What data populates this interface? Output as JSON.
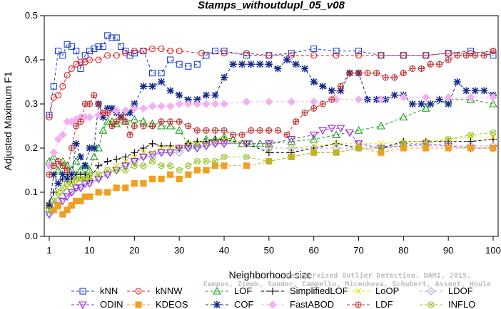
{
  "chart_data": {
    "type": "line",
    "title": "Stamps_withoutdupl_05_v08",
    "xlabel": "Neighborhood size",
    "ylabel": "Adjusted Maximum F1",
    "xlim": [
      1,
      100
    ],
    "ylim": [
      0.0,
      0.5
    ],
    "xticks": [
      1,
      10,
      20,
      30,
      40,
      50,
      60,
      70,
      80,
      90,
      100
    ],
    "yticks": [
      0.0,
      0.1,
      0.2,
      0.3,
      0.4,
      0.5
    ],
    "ytick_labels": [
      "0.0",
      "0.1",
      "0.2",
      "0.3",
      "0.4",
      "0.5"
    ],
    "grid": false,
    "legend_position": "bottom",
    "watermark_lines": [
      "Campos, Zimek, Sander, Campello, Micenkova, Schubert, Assent, Houle",
      "Unsupervised Outlier Detection. DAMI, 2015."
    ],
    "series": [
      {
        "name": "kNN",
        "color": "#1f3fd1",
        "marker": "square",
        "dash": "4,3",
        "x": [
          1,
          2,
          3,
          4,
          5,
          6,
          7,
          8,
          9,
          10,
          11,
          12,
          13,
          14,
          15,
          16,
          17,
          18,
          19,
          20,
          22,
          24,
          26,
          28,
          30,
          32,
          34,
          36,
          38,
          40,
          45,
          50,
          55,
          60,
          65,
          70,
          75,
          80,
          85,
          90,
          95,
          100
        ],
        "y": [
          0.275,
          0.34,
          0.42,
          0.41,
          0.435,
          0.43,
          0.42,
          0.38,
          0.41,
          0.42,
          0.425,
          0.43,
          0.43,
          0.455,
          0.45,
          0.45,
          0.43,
          0.42,
          0.41,
          0.415,
          0.42,
          0.37,
          0.37,
          0.4,
          0.39,
          0.385,
          0.39,
          0.41,
          0.42,
          0.42,
          0.41,
          0.41,
          0.415,
          0.425,
          0.42,
          0.42,
          0.41,
          0.41,
          0.41,
          0.415,
          0.42,
          0.41
        ]
      },
      {
        "name": "kNNW",
        "color": "#e02020",
        "marker": "circle",
        "dash": "4,3",
        "x": [
          1,
          2,
          3,
          4,
          5,
          6,
          7,
          8,
          9,
          10,
          12,
          14,
          16,
          18,
          20,
          22,
          24,
          26,
          28,
          30,
          35,
          40,
          45,
          50,
          55,
          60,
          65,
          70,
          75,
          80,
          85,
          90,
          95,
          100
        ],
        "y": [
          0.27,
          0.315,
          0.32,
          0.34,
          0.365,
          0.38,
          0.39,
          0.395,
          0.395,
          0.4,
          0.4,
          0.41,
          0.41,
          0.415,
          0.42,
          0.42,
          0.425,
          0.425,
          0.42,
          0.42,
          0.415,
          0.415,
          0.415,
          0.41,
          0.41,
          0.41,
          0.41,
          0.41,
          0.41,
          0.41,
          0.41,
          0.415,
          0.415,
          0.42
        ]
      },
      {
        "name": "LOF",
        "color": "#1aa01a",
        "marker": "triangle-up",
        "dash": "4,3",
        "x": [
          1,
          2,
          3,
          4,
          5,
          6,
          7,
          8,
          9,
          10,
          11,
          12,
          13,
          14,
          15,
          16,
          18,
          20,
          22,
          24,
          26,
          28,
          30,
          32,
          34,
          36,
          38,
          40,
          42,
          44,
          46,
          48,
          50,
          55,
          60,
          65,
          70,
          75,
          80,
          85,
          90,
          95,
          100
        ],
        "y": [
          0.17,
          0.18,
          0.15,
          0.17,
          0.16,
          0.15,
          0.17,
          0.15,
          0.16,
          0.15,
          0.18,
          0.2,
          0.24,
          0.26,
          0.26,
          0.255,
          0.26,
          0.265,
          0.26,
          0.255,
          0.25,
          0.25,
          0.24,
          0.21,
          0.21,
          0.22,
          0.22,
          0.225,
          0.22,
          0.21,
          0.21,
          0.21,
          0.21,
          0.215,
          0.22,
          0.23,
          0.24,
          0.25,
          0.27,
          0.29,
          0.31,
          0.31,
          0.3
        ]
      },
      {
        "name": "SimplifiedLOF",
        "color": "#000000",
        "marker": "plus",
        "dash": "4,3",
        "x": [
          1,
          2,
          3,
          4,
          5,
          6,
          7,
          8,
          9,
          10,
          12,
          14,
          16,
          18,
          20,
          22,
          24,
          26,
          28,
          30,
          32,
          34,
          36,
          38,
          40,
          45,
          50,
          55,
          60,
          65,
          70,
          75,
          80,
          85,
          90,
          95,
          100
        ],
        "y": [
          0.075,
          0.1,
          0.12,
          0.13,
          0.14,
          0.13,
          0.14,
          0.14,
          0.14,
          0.13,
          0.16,
          0.17,
          0.175,
          0.18,
          0.19,
          0.2,
          0.21,
          0.205,
          0.205,
          0.2,
          0.21,
          0.215,
          0.215,
          0.22,
          0.22,
          0.21,
          0.19,
          0.19,
          0.2,
          0.21,
          0.2,
          0.2,
          0.215,
          0.215,
          0.215,
          0.215,
          0.22
        ]
      },
      {
        "name": "LoOP",
        "color": "#e8e000",
        "marker": "x",
        "dash": "4,3",
        "x": [
          1,
          2,
          3,
          4,
          5,
          6,
          7,
          8,
          9,
          10,
          12,
          14,
          16,
          18,
          20,
          22,
          24,
          26,
          28,
          30,
          32,
          34,
          36,
          38,
          40,
          45,
          50,
          55,
          60,
          65,
          70,
          75,
          80,
          85,
          90,
          95,
          100
        ],
        "y": [
          0.06,
          0.08,
          0.09,
          0.1,
          0.11,
          0.12,
          0.12,
          0.13,
          0.13,
          0.13,
          0.14,
          0.15,
          0.16,
          0.17,
          0.18,
          0.19,
          0.19,
          0.2,
          0.2,
          0.2,
          0.21,
          0.21,
          0.21,
          0.215,
          0.22,
          0.21,
          0.2,
          0.2,
          0.205,
          0.21,
          0.21,
          0.21,
          0.215,
          0.215,
          0.22,
          0.225,
          0.225
        ]
      },
      {
        "name": "LDOF",
        "color": "#a8a8e8",
        "marker": "diamond",
        "dash": "4,3",
        "x": [
          1,
          2,
          3,
          4,
          5,
          6,
          7,
          8,
          9,
          10,
          12,
          14,
          16,
          18,
          20,
          22,
          24,
          26,
          28,
          30,
          32,
          34,
          36,
          38,
          40,
          45,
          50,
          55,
          60,
          65,
          70,
          75,
          80,
          85,
          90,
          95,
          100
        ],
        "y": [
          0.05,
          0.07,
          0.08,
          0.09,
          0.1,
          0.1,
          0.11,
          0.11,
          0.12,
          0.12,
          0.13,
          0.14,
          0.15,
          0.16,
          0.17,
          0.18,
          0.18,
          0.19,
          0.19,
          0.19,
          0.2,
          0.2,
          0.205,
          0.21,
          0.21,
          0.21,
          0.2,
          0.2,
          0.2,
          0.2,
          0.2,
          0.2,
          0.205,
          0.205,
          0.205,
          0.205,
          0.205
        ]
      },
      {
        "name": "ODIN",
        "color": "#9a2ad0",
        "marker": "triangle-down",
        "dash": "4,3",
        "x": [
          1,
          2,
          3,
          4,
          5,
          6,
          7,
          8,
          9,
          10,
          12,
          14,
          16,
          18,
          20,
          22,
          24,
          26,
          28,
          30,
          32,
          34,
          36,
          38,
          40,
          45,
          50,
          55,
          60,
          62,
          64,
          66,
          68,
          70,
          75,
          80,
          85,
          90,
          95,
          100
        ],
        "y": [
          0.05,
          0.06,
          0.07,
          0.08,
          0.09,
          0.1,
          0.11,
          0.11,
          0.12,
          0.12,
          0.13,
          0.14,
          0.15,
          0.16,
          0.17,
          0.18,
          0.185,
          0.19,
          0.19,
          0.2,
          0.2,
          0.2,
          0.205,
          0.21,
          0.21,
          0.21,
          0.21,
          0.22,
          0.23,
          0.24,
          0.245,
          0.245,
          0.235,
          0.21,
          0.2,
          0.205,
          0.21,
          0.205,
          0.2,
          0.2
        ]
      },
      {
        "name": "KDEOS",
        "color": "#f0a020",
        "marker": "square-filled",
        "dash": "4,3",
        "x": [
          1,
          2,
          3,
          4,
          5,
          6,
          7,
          8,
          9,
          10,
          12,
          14,
          16,
          18,
          20,
          22,
          24,
          26,
          28,
          30,
          32,
          34,
          36,
          38,
          40,
          45,
          50,
          55,
          60,
          65,
          70,
          75,
          80,
          85,
          90,
          95,
          100
        ],
        "y": [
          0.07,
          0.06,
          0.07,
          0.05,
          0.06,
          0.07,
          0.08,
          0.08,
          0.09,
          0.09,
          0.1,
          0.1,
          0.11,
          0.11,
          0.12,
          0.12,
          0.13,
          0.13,
          0.14,
          0.13,
          0.14,
          0.15,
          0.15,
          0.16,
          0.16,
          0.16,
          0.17,
          0.18,
          0.19,
          0.19,
          0.2,
          0.19,
          0.2,
          0.2,
          0.2,
          0.2,
          0.2
        ]
      },
      {
        "name": "COF",
        "color": "#142a8a",
        "marker": "star",
        "dash": "4,3",
        "x": [
          1,
          2,
          3,
          4,
          5,
          6,
          7,
          8,
          9,
          10,
          11,
          12,
          13,
          14,
          15,
          16,
          17,
          18,
          19,
          20,
          22,
          24,
          26,
          28,
          30,
          32,
          34,
          36,
          38,
          40,
          42,
          44,
          46,
          48,
          50,
          52,
          54,
          56,
          58,
          60,
          62,
          64,
          66,
          68,
          70,
          72,
          74,
          76,
          78,
          80,
          82,
          84,
          86,
          88,
          90,
          92,
          94,
          96,
          98,
          100
        ],
        "y": [
          0.07,
          0.14,
          0.12,
          0.14,
          0.13,
          0.14,
          0.21,
          0.18,
          0.16,
          0.2,
          0.2,
          0.3,
          0.27,
          0.29,
          0.29,
          0.28,
          0.27,
          0.28,
          0.28,
          0.3,
          0.34,
          0.34,
          0.35,
          0.33,
          0.32,
          0.31,
          0.31,
          0.32,
          0.32,
          0.36,
          0.39,
          0.39,
          0.39,
          0.39,
          0.39,
          0.38,
          0.4,
          0.39,
          0.38,
          0.35,
          0.34,
          0.33,
          0.33,
          0.37,
          0.37,
          0.31,
          0.31,
          0.31,
          0.32,
          0.32,
          0.3,
          0.3,
          0.3,
          0.31,
          0.3,
          0.35,
          0.33,
          0.33,
          0.33,
          0.32
        ]
      },
      {
        "name": "FastABOD",
        "color": "#f2b0f2",
        "marker": "diamond-filled",
        "dash": "4,3",
        "x": [
          1,
          2,
          3,
          4,
          5,
          6,
          7,
          8,
          9,
          10,
          12,
          14,
          16,
          18,
          20,
          22,
          24,
          26,
          28,
          30,
          32,
          34,
          36,
          38,
          40,
          45,
          50,
          55,
          60,
          65,
          70,
          75,
          80,
          85,
          90,
          95,
          100
        ],
        "y": [
          0.16,
          0.19,
          0.22,
          0.23,
          0.26,
          0.26,
          0.265,
          0.27,
          0.27,
          0.27,
          0.275,
          0.28,
          0.285,
          0.285,
          0.29,
          0.29,
          0.295,
          0.295,
          0.295,
          0.3,
          0.3,
          0.3,
          0.3,
          0.3,
          0.3,
          0.305,
          0.305,
          0.305,
          0.305,
          0.31,
          0.31,
          0.31,
          0.315,
          0.315,
          0.315,
          0.315,
          0.315
        ]
      },
      {
        "name": "LDF",
        "color": "#c03030",
        "marker": "circle-plus",
        "dash": "4,3",
        "x": [
          1,
          2,
          3,
          4,
          5,
          6,
          7,
          8,
          9,
          10,
          11,
          12,
          13,
          14,
          15,
          16,
          17,
          18,
          19,
          20,
          22,
          24,
          26,
          28,
          30,
          32,
          34,
          36,
          38,
          40,
          42,
          44,
          46,
          48,
          50,
          52,
          54,
          56,
          58,
          60,
          62,
          64,
          66,
          68,
          70,
          72,
          74,
          76,
          78,
          80,
          82,
          84,
          86,
          88,
          90,
          92,
          94,
          96,
          98,
          100
        ],
        "y": [
          0.14,
          0.16,
          0.17,
          0.16,
          0.15,
          0.2,
          0.25,
          0.26,
          0.3,
          0.3,
          0.32,
          0.3,
          0.28,
          0.28,
          0.25,
          0.26,
          0.27,
          0.26,
          0.23,
          0.25,
          0.25,
          0.25,
          0.26,
          0.26,
          0.26,
          0.25,
          0.24,
          0.24,
          0.24,
          0.24,
          0.23,
          0.23,
          0.24,
          0.24,
          0.24,
          0.24,
          0.23,
          0.26,
          0.28,
          0.29,
          0.3,
          0.31,
          0.34,
          0.37,
          0.37,
          0.37,
          0.37,
          0.36,
          0.36,
          0.37,
          0.38,
          0.38,
          0.39,
          0.39,
          0.4,
          0.41,
          0.41,
          0.41,
          0.41,
          0.42
        ]
      },
      {
        "name": "INFLO",
        "color": "#9ac42a",
        "marker": "circle-x",
        "dash": "4,3",
        "x": [
          1,
          2,
          3,
          4,
          5,
          6,
          7,
          8,
          9,
          10,
          12,
          14,
          16,
          18,
          20,
          22,
          24,
          26,
          28,
          30,
          32,
          34,
          36,
          38,
          40,
          45,
          50,
          55,
          60,
          65,
          70,
          75,
          80,
          85,
          90,
          95,
          100
        ],
        "y": [
          0.06,
          0.08,
          0.1,
          0.11,
          0.12,
          0.12,
          0.13,
          0.13,
          0.13,
          0.14,
          0.14,
          0.15,
          0.15,
          0.15,
          0.16,
          0.16,
          0.17,
          0.16,
          0.16,
          0.15,
          0.16,
          0.17,
          0.17,
          0.17,
          0.18,
          0.18,
          0.17,
          0.18,
          0.19,
          0.19,
          0.2,
          0.2,
          0.21,
          0.21,
          0.22,
          0.23,
          0.235
        ]
      }
    ]
  }
}
